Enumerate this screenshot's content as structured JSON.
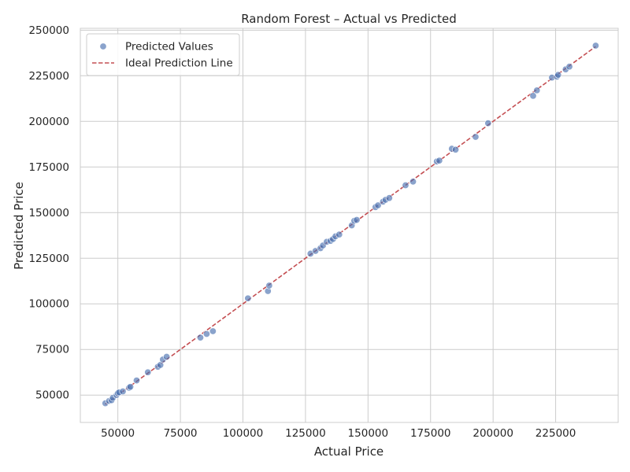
{
  "chart_data": {
    "type": "scatter",
    "title": "Random Forest – Actual vs Predicted",
    "xlabel": "Actual Price",
    "ylabel": "Predicted Price",
    "xlim": [
      35000,
      250000
    ],
    "ylim": [
      35000,
      251000
    ],
    "xticks": [
      50000,
      75000,
      100000,
      125000,
      150000,
      175000,
      200000,
      225000
    ],
    "yticks": [
      50000,
      75000,
      100000,
      125000,
      150000,
      175000,
      200000,
      225000,
      250000
    ],
    "grid": true,
    "legend_position": "top-left",
    "series": [
      {
        "name": "Predicted Values",
        "kind": "scatter",
        "color": "#4c72b0",
        "points": [
          [
            45000,
            45500
          ],
          [
            46500,
            46800
          ],
          [
            47500,
            47200
          ],
          [
            48000,
            48500
          ],
          [
            49500,
            50000
          ],
          [
            50000,
            51000
          ],
          [
            50500,
            51500
          ],
          [
            52000,
            52000
          ],
          [
            54500,
            54000
          ],
          [
            55000,
            54500
          ],
          [
            57500,
            58000
          ],
          [
            62000,
            62500
          ],
          [
            66000,
            65500
          ],
          [
            67000,
            66500
          ],
          [
            68000,
            69500
          ],
          [
            69500,
            71000
          ],
          [
            83000,
            81500
          ],
          [
            85500,
            83500
          ],
          [
            88000,
            85000
          ],
          [
            102000,
            103000
          ],
          [
            110000,
            107000
          ],
          [
            110500,
            110000
          ],
          [
            127000,
            127500
          ],
          [
            129000,
            129000
          ],
          [
            131000,
            130500
          ],
          [
            132000,
            132000
          ],
          [
            133500,
            134000
          ],
          [
            135000,
            134500
          ],
          [
            136000,
            135500
          ],
          [
            137000,
            137000
          ],
          [
            138500,
            138000
          ],
          [
            143500,
            143000
          ],
          [
            144500,
            145500
          ],
          [
            145500,
            146000
          ],
          [
            153000,
            153000
          ],
          [
            154000,
            154000
          ],
          [
            156000,
            156000
          ],
          [
            157000,
            157000
          ],
          [
            158500,
            158000
          ],
          [
            165000,
            165000
          ],
          [
            168000,
            167000
          ],
          [
            177500,
            178000
          ],
          [
            178500,
            178500
          ],
          [
            183500,
            185000
          ],
          [
            185000,
            184500
          ],
          [
            193000,
            191500
          ],
          [
            198000,
            199000
          ],
          [
            216000,
            214000
          ],
          [
            217500,
            217000
          ],
          [
            223500,
            224000
          ],
          [
            225500,
            224500
          ],
          [
            226000,
            225500
          ],
          [
            229000,
            228500
          ],
          [
            230500,
            230000
          ],
          [
            241000,
            241500
          ]
        ]
      },
      {
        "name": "Ideal Prediction Line",
        "kind": "line",
        "color": "#c44e52",
        "dash": "dashed",
        "points": [
          [
            45000,
            45000
          ],
          [
            241000,
            241000
          ]
        ]
      }
    ]
  }
}
